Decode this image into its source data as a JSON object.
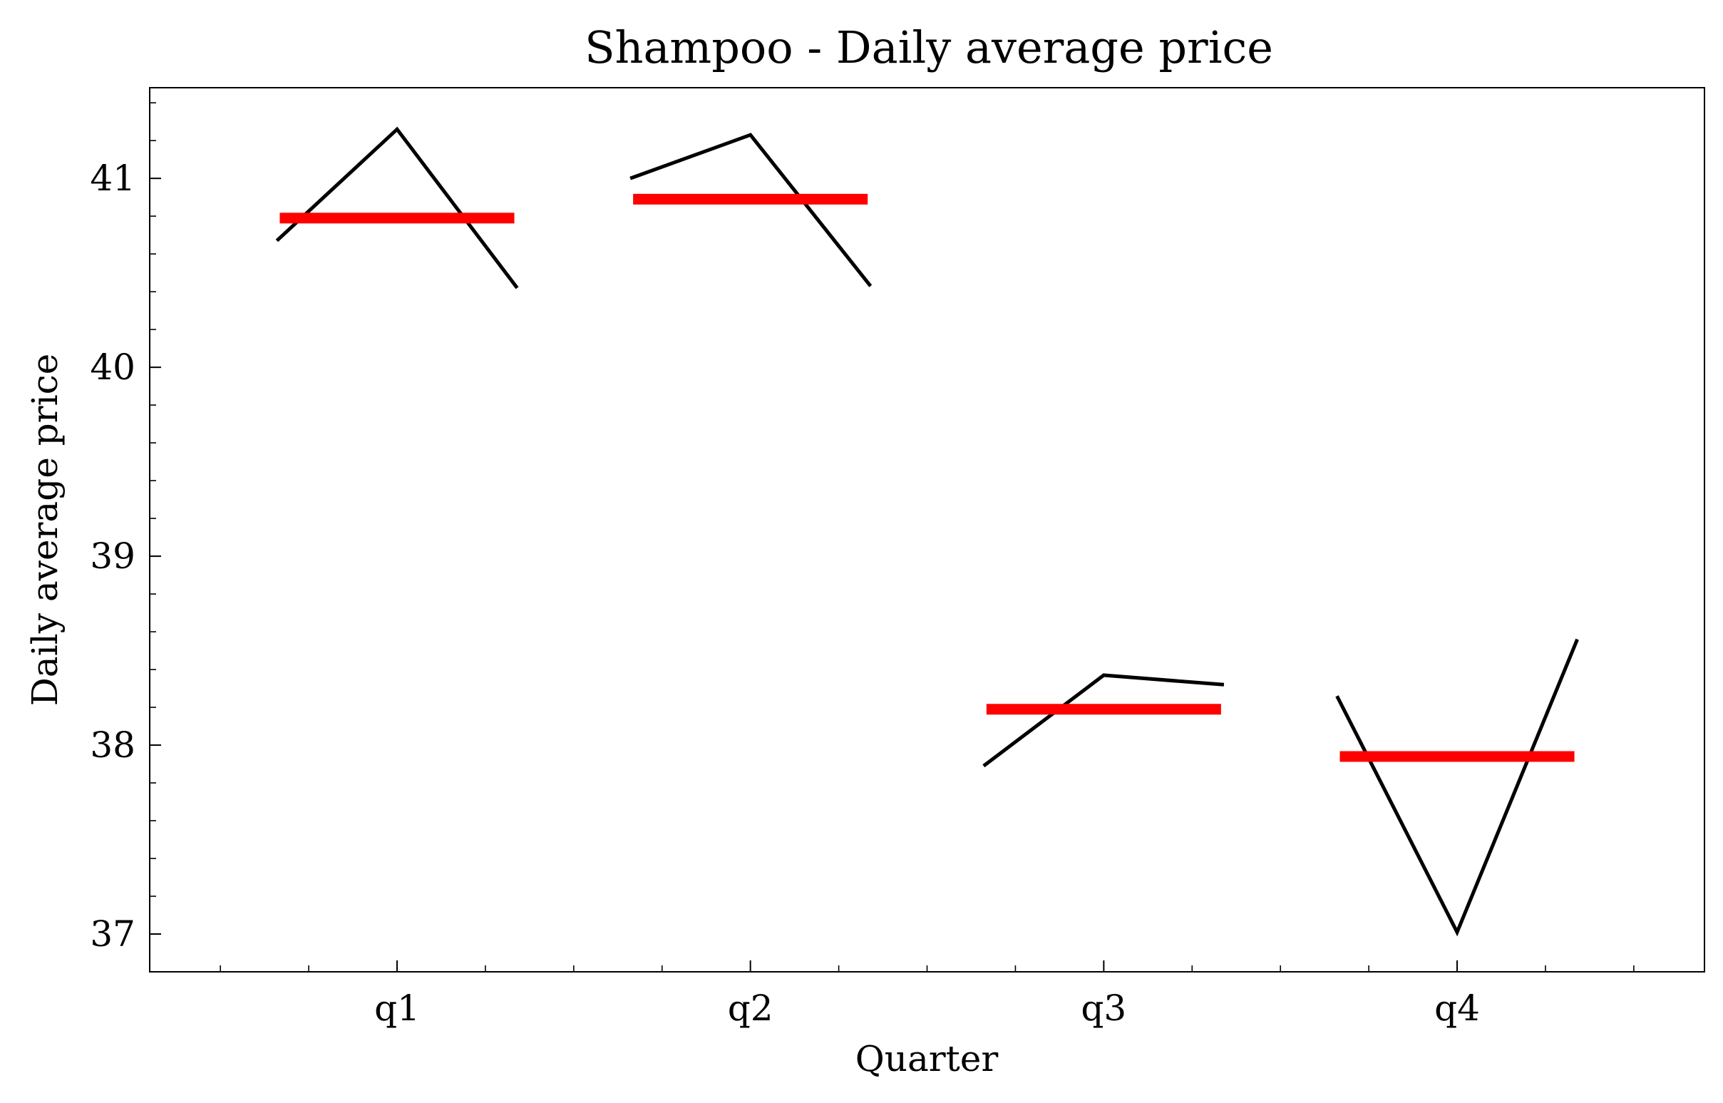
{
  "chart_data": {
    "type": "line",
    "title": "Shampoo - Daily average price",
    "xlabel": "Quarter",
    "ylabel": "Daily average price",
    "categories": [
      "q1",
      "q2",
      "q3",
      "q4"
    ],
    "xlim": [
      -0.7,
      3.7
    ],
    "ylim": [
      36.8,
      41.48
    ],
    "yticks": [
      37,
      38,
      39,
      40,
      41
    ],
    "ytick_labels": [
      "37",
      "38",
      "39",
      "40",
      "41"
    ],
    "grid": false,
    "series": [
      {
        "category": "q1",
        "x": [
          -0.34,
          0.0,
          0.34
        ],
        "y": [
          40.67,
          41.26,
          40.42
        ],
        "mean": 40.79
      },
      {
        "category": "q2",
        "x": [
          0.66,
          1.0,
          1.34
        ],
        "y": [
          41.0,
          41.23,
          40.43
        ],
        "mean": 40.89
      },
      {
        "category": "q3",
        "x": [
          1.66,
          2.0,
          2.34
        ],
        "y": [
          37.89,
          38.37,
          38.32
        ],
        "mean": 38.19
      },
      {
        "category": "q4",
        "x": [
          2.66,
          3.0,
          3.34
        ],
        "y": [
          38.26,
          37.01,
          38.56
        ],
        "mean": 37.94
      }
    ],
    "colors": {
      "line": "#000000",
      "mean": "#ff0000"
    }
  }
}
